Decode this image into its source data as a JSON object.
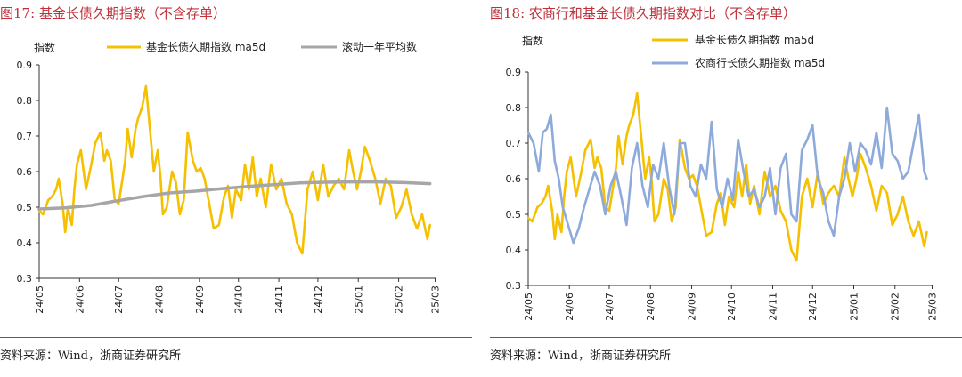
{
  "figures": [
    {
      "title": "图17:  基金长债久期指数（不含存单）",
      "source": "资料来源：Wind，浙商证券研究所"
    },
    {
      "title": "图18:  农商行和基金长债久期指数对比（不含存单）",
      "source": "资料来源：Wind，浙商证券研究所"
    }
  ],
  "chart_data": [
    {
      "type": "line",
      "title": "",
      "ylabel": "指数",
      "ylim": [
        0.3,
        0.9
      ],
      "yticks": [
        "0.3",
        "0.4",
        "0.5",
        "0.6",
        "0.7",
        "0.8",
        "0.9"
      ],
      "x_start": "2024-05-01",
      "xtick_labels": [
        "24/05",
        "24/06",
        "24/07",
        "24/08",
        "24/09",
        "24/10",
        "24/11",
        "24/12",
        "25/01",
        "25/02",
        "25/03"
      ],
      "grid": false,
      "legend": "top",
      "series": [
        {
          "name": "基金长债久期指数 ma5d",
          "color": "#f5c000",
          "x": [
            0,
            3,
            7,
            10,
            13,
            15,
            18,
            20,
            22,
            25,
            27,
            29,
            32,
            36,
            40,
            43,
            47,
            50,
            52,
            55,
            58,
            61,
            64,
            66,
            68,
            71,
            74,
            76,
            79,
            82,
            85,
            88,
            91,
            93,
            95,
            98,
            100,
            102,
            105,
            108,
            111,
            114,
            118,
            121,
            124,
            127,
            131,
            134,
            138,
            142,
            145,
            148,
            151,
            155,
            158,
            161,
            164,
            167,
            170,
            174,
            178,
            182,
            186,
            190,
            194,
            198,
            202,
            206,
            210,
            214,
            218,
            222,
            226,
            230,
            234,
            238,
            241,
            244,
            247,
            250,
            254,
            258,
            262,
            266,
            270,
            274,
            278,
            282,
            286,
            290,
            294,
            298,
            300
          ],
          "values": [
            0.49,
            0.48,
            0.52,
            0.53,
            0.55,
            0.58,
            0.51,
            0.43,
            0.5,
            0.45,
            0.55,
            0.62,
            0.66,
            0.55,
            0.62,
            0.68,
            0.71,
            0.63,
            0.66,
            0.63,
            0.52,
            0.51,
            0.58,
            0.63,
            0.72,
            0.64,
            0.72,
            0.75,
            0.78,
            0.84,
            0.72,
            0.6,
            0.66,
            0.59,
            0.48,
            0.5,
            0.55,
            0.6,
            0.57,
            0.48,
            0.52,
            0.71,
            0.63,
            0.6,
            0.61,
            0.58,
            0.5,
            0.44,
            0.45,
            0.53,
            0.56,
            0.47,
            0.55,
            0.52,
            0.62,
            0.55,
            0.64,
            0.53,
            0.58,
            0.5,
            0.62,
            0.55,
            0.58,
            0.51,
            0.48,
            0.4,
            0.37,
            0.55,
            0.6,
            0.52,
            0.62,
            0.53,
            0.56,
            0.58,
            0.55,
            0.66,
            0.6,
            0.55,
            0.6,
            0.67,
            0.63,
            0.58,
            0.51,
            0.58,
            0.56,
            0.47,
            0.5,
            0.55,
            0.48,
            0.44,
            0.48,
            0.41,
            0.45
          ]
        },
        {
          "name": "滚动一年平均数",
          "color": "#a6a6a6",
          "x": [
            0,
            20,
            40,
            60,
            80,
            100,
            120,
            140,
            160,
            180,
            200,
            220,
            240,
            260,
            280,
            300
          ],
          "values": [
            0.495,
            0.498,
            0.505,
            0.518,
            0.53,
            0.54,
            0.545,
            0.552,
            0.558,
            0.563,
            0.568,
            0.57,
            0.571,
            0.571,
            0.569,
            0.566
          ]
        }
      ]
    },
    {
      "type": "line",
      "title": "",
      "ylabel": "指数",
      "ylim": [
        0.3,
        0.9
      ],
      "yticks": [
        "0.3",
        "0.4",
        "0.5",
        "0.6",
        "0.7",
        "0.8",
        "0.9"
      ],
      "x_start": "2024-05-01",
      "xtick_labels": [
        "24/05",
        "24/06",
        "24/07",
        "24/08",
        "24/09",
        "24/10",
        "24/11",
        "24/12",
        "25/01",
        "25/02",
        "25/03"
      ],
      "grid": false,
      "legend": "top",
      "series": [
        {
          "name": "基金长债久期指数 ma5d",
          "color": "#f5c000",
          "x": [
            0,
            3,
            7,
            10,
            13,
            15,
            18,
            20,
            22,
            25,
            27,
            29,
            32,
            36,
            40,
            43,
            47,
            50,
            52,
            55,
            58,
            61,
            64,
            66,
            68,
            71,
            74,
            76,
            79,
            82,
            85,
            88,
            91,
            93,
            95,
            98,
            100,
            102,
            105,
            108,
            111,
            114,
            118,
            121,
            124,
            127,
            131,
            134,
            138,
            142,
            145,
            148,
            151,
            155,
            158,
            161,
            164,
            167,
            170,
            174,
            178,
            182,
            186,
            190,
            194,
            198,
            202,
            206,
            210,
            214,
            218,
            222,
            226,
            230,
            234,
            238,
            241,
            244,
            247,
            250,
            254,
            258,
            262,
            266,
            270,
            274,
            278,
            282,
            286,
            290,
            294,
            298,
            300
          ],
          "values": [
            0.49,
            0.48,
            0.52,
            0.53,
            0.55,
            0.58,
            0.51,
            0.43,
            0.5,
            0.45,
            0.55,
            0.62,
            0.66,
            0.55,
            0.62,
            0.68,
            0.71,
            0.63,
            0.66,
            0.63,
            0.52,
            0.51,
            0.58,
            0.63,
            0.72,
            0.64,
            0.72,
            0.75,
            0.78,
            0.84,
            0.72,
            0.6,
            0.66,
            0.59,
            0.48,
            0.5,
            0.55,
            0.6,
            0.57,
            0.48,
            0.52,
            0.71,
            0.63,
            0.6,
            0.61,
            0.58,
            0.5,
            0.44,
            0.45,
            0.53,
            0.56,
            0.47,
            0.55,
            0.52,
            0.62,
            0.55,
            0.64,
            0.53,
            0.58,
            0.5,
            0.62,
            0.55,
            0.58,
            0.51,
            0.48,
            0.4,
            0.37,
            0.55,
            0.6,
            0.52,
            0.62,
            0.53,
            0.56,
            0.58,
            0.55,
            0.66,
            0.6,
            0.55,
            0.6,
            0.67,
            0.63,
            0.58,
            0.51,
            0.58,
            0.56,
            0.47,
            0.5,
            0.55,
            0.48,
            0.44,
            0.48,
            0.41,
            0.45
          ]
        },
        {
          "name": "农商行长债久期指数 ma5d",
          "color": "#8eaadb",
          "x": [
            0,
            4,
            8,
            11,
            14,
            17,
            20,
            23,
            26,
            30,
            34,
            38,
            42,
            46,
            50,
            54,
            58,
            62,
            66,
            70,
            74,
            78,
            82,
            86,
            90,
            94,
            98,
            102,
            106,
            110,
            114,
            118,
            122,
            126,
            130,
            134,
            138,
            142,
            146,
            150,
            154,
            158,
            162,
            166,
            170,
            174,
            178,
            182,
            186,
            190,
            194,
            198,
            202,
            206,
            210,
            214,
            218,
            222,
            226,
            230,
            234,
            238,
            242,
            246,
            250,
            254,
            258,
            262,
            266,
            270,
            274,
            278,
            282,
            286,
            290,
            294,
            298,
            300
          ],
          "values": [
            0.73,
            0.7,
            0.62,
            0.73,
            0.74,
            0.78,
            0.65,
            0.6,
            0.52,
            0.47,
            0.42,
            0.46,
            0.52,
            0.57,
            0.62,
            0.58,
            0.5,
            0.58,
            0.62,
            0.55,
            0.47,
            0.63,
            0.7,
            0.58,
            0.52,
            0.64,
            0.6,
            0.7,
            0.58,
            0.5,
            0.7,
            0.7,
            0.58,
            0.55,
            0.64,
            0.6,
            0.76,
            0.57,
            0.52,
            0.6,
            0.54,
            0.71,
            0.62,
            0.55,
            0.57,
            0.52,
            0.55,
            0.63,
            0.5,
            0.63,
            0.67,
            0.5,
            0.48,
            0.68,
            0.71,
            0.75,
            0.6,
            0.56,
            0.48,
            0.44,
            0.55,
            0.6,
            0.7,
            0.62,
            0.7,
            0.68,
            0.64,
            0.73,
            0.63,
            0.8,
            0.67,
            0.65,
            0.6,
            0.62,
            0.7,
            0.78,
            0.62,
            0.6
          ]
        }
      ]
    }
  ]
}
